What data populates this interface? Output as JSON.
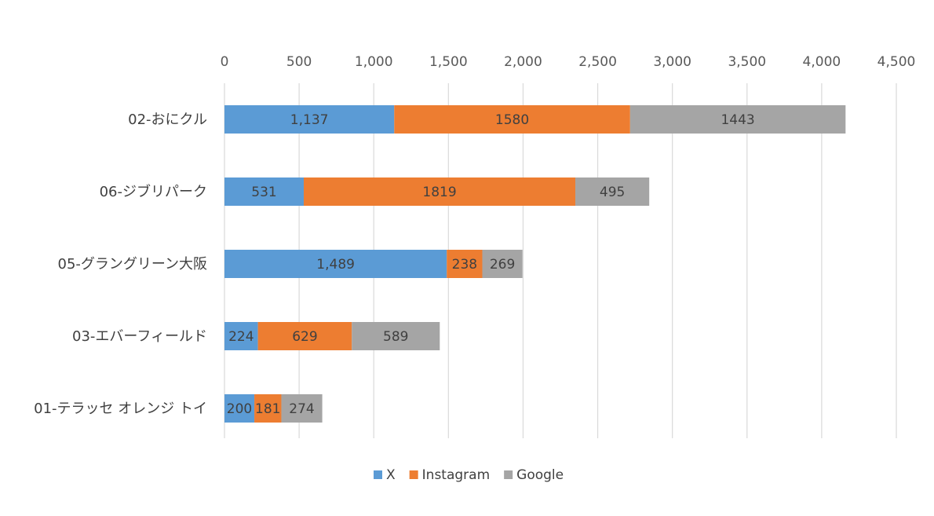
{
  "chart_data": {
    "type": "bar",
    "orientation": "horizontal",
    "stacked": true,
    "categories": [
      "02-おにクル",
      "06-ジブリパーク",
      "05-グラングリーン大阪",
      "03-エバーフィールド",
      "01-テラッセ オレンジ トイ"
    ],
    "series": [
      {
        "name": "X",
        "color": "#5b9bd5",
        "values": [
          1137,
          531,
          1489,
          224,
          200
        ],
        "labels": [
          "1,137",
          "531",
          "1,489",
          "224",
          "200"
        ]
      },
      {
        "name": "Instagram",
        "color": "#ed7d31",
        "values": [
          1580,
          1819,
          238,
          629,
          181
        ],
        "labels": [
          "1580",
          "1819",
          "238",
          "629",
          "181"
        ]
      },
      {
        "name": "Google",
        "color": "#a5a5a5",
        "values": [
          1443,
          495,
          269,
          589,
          274
        ],
        "labels": [
          "1443",
          "495",
          "269",
          "589",
          "274"
        ]
      }
    ],
    "xlim": [
      0,
      4500
    ],
    "x_ticks": [
      0,
      500,
      1000,
      1500,
      2000,
      2500,
      3000,
      3500,
      4000,
      4500
    ],
    "x_tick_labels": [
      "0",
      "500",
      "1,000",
      "1,500",
      "2,000",
      "2,500",
      "3,000",
      "3,500",
      "4,000",
      "4,500"
    ],
    "x_axis_position": "top",
    "grid": true,
    "legend_position": "bottom"
  }
}
